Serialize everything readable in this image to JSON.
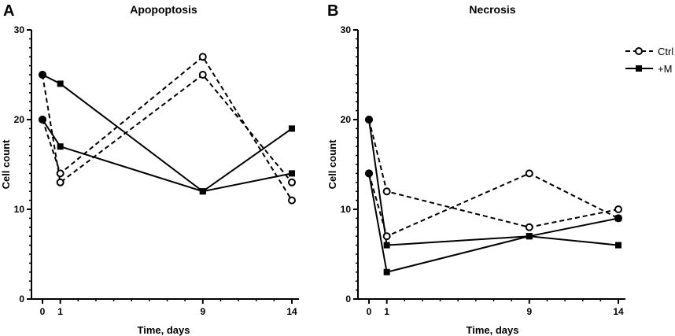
{
  "chart_data": [
    {
      "panel": "A",
      "type": "line",
      "title": "Apopoptosis",
      "xlabel": "Time, days",
      "ylabel": "Cell count",
      "x_ticks": [
        0,
        1,
        9,
        14
      ],
      "y_ticks": [
        0,
        10,
        20,
        30
      ],
      "xlim": [
        0,
        14
      ],
      "ylim": [
        0,
        30
      ],
      "series": [
        {
          "name": "Ctrl",
          "style": "dashed-open-circle",
          "x": [
            0,
            1,
            9,
            14
          ],
          "values": [
            25,
            13,
            25,
            13
          ]
        },
        {
          "name": "Ctrl",
          "style": "dashed-open-circle",
          "x": [
            0,
            1,
            9,
            14
          ],
          "values": [
            20,
            14,
            27,
            11
          ]
        },
        {
          "name": "+M",
          "style": "solid-filled-square",
          "x": [
            0,
            1,
            9,
            14
          ],
          "values": [
            25,
            24,
            12,
            14
          ]
        },
        {
          "name": "+M",
          "style": "solid-filled-square",
          "x": [
            0,
            1,
            9,
            14
          ],
          "values": [
            20,
            17,
            12,
            19
          ]
        }
      ]
    },
    {
      "panel": "B",
      "type": "line",
      "title": "Necrosis",
      "xlabel": "Time, days",
      "ylabel": "Cell count",
      "x_ticks": [
        0,
        1,
        9,
        14
      ],
      "y_ticks": [
        0,
        10,
        20,
        30
      ],
      "xlim": [
        0,
        14
      ],
      "ylim": [
        0,
        30
      ],
      "series": [
        {
          "name": "Ctrl",
          "style": "dashed-open-circle",
          "x": [
            0,
            1,
            9,
            14
          ],
          "values": [
            20,
            12,
            8,
            10
          ]
        },
        {
          "name": "Ctrl",
          "style": "dashed-open-circle",
          "x": [
            0,
            1,
            9,
            14
          ],
          "values": [
            14,
            7,
            14,
            9
          ]
        },
        {
          "name": "+M",
          "style": "solid-filled-square",
          "x": [
            0,
            1,
            9,
            14
          ],
          "values": [
            20,
            6,
            7,
            6
          ]
        },
        {
          "name": "+M",
          "style": "solid-filled-square",
          "x": [
            0,
            1,
            9,
            14
          ],
          "values": [
            14,
            3,
            7,
            9
          ]
        }
      ]
    }
  ],
  "legend": [
    {
      "label": "Ctrl",
      "style": "dashed-open-circle"
    },
    {
      "label": "+M",
      "style": "solid-filled-square"
    }
  ]
}
